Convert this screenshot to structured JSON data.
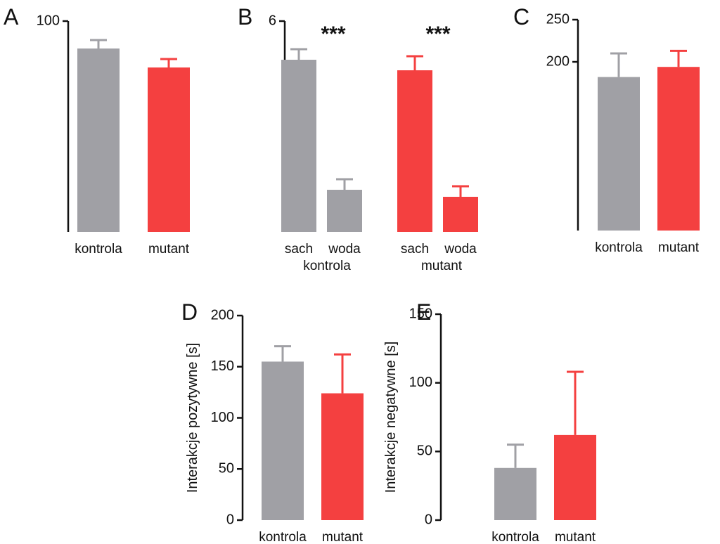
{
  "chart_data": [
    {
      "type": "bar",
      "panel": "A",
      "categories": [
        "kontrola",
        "mutant"
      ],
      "values": [
        87,
        78
      ],
      "errors": [
        4,
        4
      ],
      "colors": [
        "#a0a0a5",
        "#f44040"
      ],
      "ylim": [
        0,
        100
      ],
      "yticks": [
        100
      ]
    },
    {
      "type": "bar",
      "panel": "B",
      "categories": [
        "sach",
        "woda",
        "sach",
        "woda"
      ],
      "groups": [
        "kontrola",
        "mutant"
      ],
      "values": [
        4.9,
        1.2,
        4.6,
        1.0
      ],
      "errors": [
        0.3,
        0.3,
        0.4,
        0.3
      ],
      "colors": [
        "#a0a0a5",
        "#a0a0a5",
        "#f44040",
        "#f44040"
      ],
      "annotations": [
        "***",
        "***"
      ],
      "ylim": [
        0,
        6
      ],
      "yticks": [
        6
      ]
    },
    {
      "type": "bar",
      "panel": "C",
      "categories": [
        "kontrola",
        "mutant"
      ],
      "values": [
        182,
        194
      ],
      "errors": [
        28,
        19
      ],
      "colors": [
        "#a0a0a5",
        "#f44040"
      ],
      "ylim": [
        0,
        250
      ],
      "yticks": [
        200,
        250
      ]
    },
    {
      "type": "bar",
      "panel": "D",
      "ylabel": "Interakcje pozytywne [s]",
      "categories": [
        "kontrola",
        "mutant"
      ],
      "values": [
        155,
        124
      ],
      "errors": [
        15,
        38
      ],
      "colors": [
        "#a0a0a5",
        "#f44040"
      ],
      "ylim": [
        0,
        200
      ],
      "yticks": [
        0,
        50,
        100,
        150,
        200
      ]
    },
    {
      "type": "bar",
      "panel": "E",
      "ylabel": "Interakcje negatywne [s]",
      "categories": [
        "kontrola",
        "mutant"
      ],
      "values": [
        38,
        62
      ],
      "errors": [
        17,
        46
      ],
      "colors": [
        "#a0a0a5",
        "#f44040"
      ],
      "ylim": [
        0,
        150
      ],
      "yticks": [
        0,
        50,
        100,
        150
      ]
    }
  ]
}
